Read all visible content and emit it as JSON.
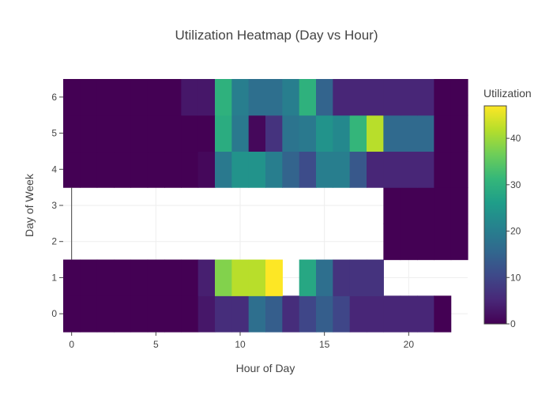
{
  "chart_data": {
    "type": "heatmap",
    "title": "Utilization Heatmap (Day vs Hour)",
    "xlabel": "Hour of Day",
    "ylabel": "Day of Week",
    "x": [
      0,
      1,
      2,
      3,
      4,
      5,
      6,
      7,
      8,
      9,
      10,
      11,
      12,
      13,
      14,
      15,
      16,
      17,
      18,
      19,
      20,
      21,
      22,
      23
    ],
    "y": [
      0,
      1,
      2,
      3,
      4,
      5,
      6
    ],
    "x_ticks": [
      0,
      5,
      10,
      15,
      20
    ],
    "y_ticks": [
      0,
      1,
      2,
      3,
      4,
      5,
      6
    ],
    "xlim": [
      -0.5,
      23.5
    ],
    "ylim": [
      -0.5,
      6.5
    ],
    "z": [
      [
        0,
        0,
        0,
        0,
        0,
        0,
        0,
        0,
        3,
        6,
        6,
        17,
        14,
        6,
        10,
        14,
        10,
        5,
        5,
        5,
        5,
        5,
        0,
        null
      ],
      [
        0,
        0,
        0,
        0,
        0,
        0,
        0,
        0,
        4,
        38,
        42,
        42,
        47,
        null,
        28,
        17,
        7,
        7,
        7,
        null,
        null,
        null,
        null,
        null
      ],
      [
        null,
        null,
        null,
        null,
        null,
        null,
        null,
        null,
        null,
        null,
        null,
        null,
        null,
        null,
        null,
        null,
        null,
        null,
        null,
        0,
        0,
        0,
        0,
        0
      ],
      [
        null,
        null,
        null,
        null,
        null,
        null,
        null,
        null,
        null,
        null,
        null,
        null,
        null,
        null,
        null,
        null,
        null,
        null,
        null,
        0,
        0,
        0,
        0,
        0
      ],
      [
        0,
        0,
        0,
        0,
        0,
        0,
        0,
        0,
        1,
        19,
        24,
        24,
        20,
        15,
        11,
        20,
        20,
        13,
        5,
        5,
        5,
        5,
        0,
        0
      ],
      [
        0,
        0,
        0,
        0,
        0,
        0,
        0,
        0,
        0,
        29,
        19,
        1,
        7,
        18,
        19,
        24,
        22,
        31,
        42,
        16,
        16,
        16,
        0,
        0
      ],
      [
        0,
        0,
        0,
        0,
        0,
        0,
        0,
        3,
        3,
        30,
        20,
        17,
        17,
        20,
        30,
        15,
        5,
        5,
        5,
        5,
        5,
        5,
        0,
        0
      ]
    ],
    "colorbar": {
      "title": "Utilization",
      "min": 0,
      "max": 47,
      "ticks": [
        0,
        10,
        20,
        30,
        40
      ],
      "colorscale": "Viridis"
    },
    "grid": true
  }
}
